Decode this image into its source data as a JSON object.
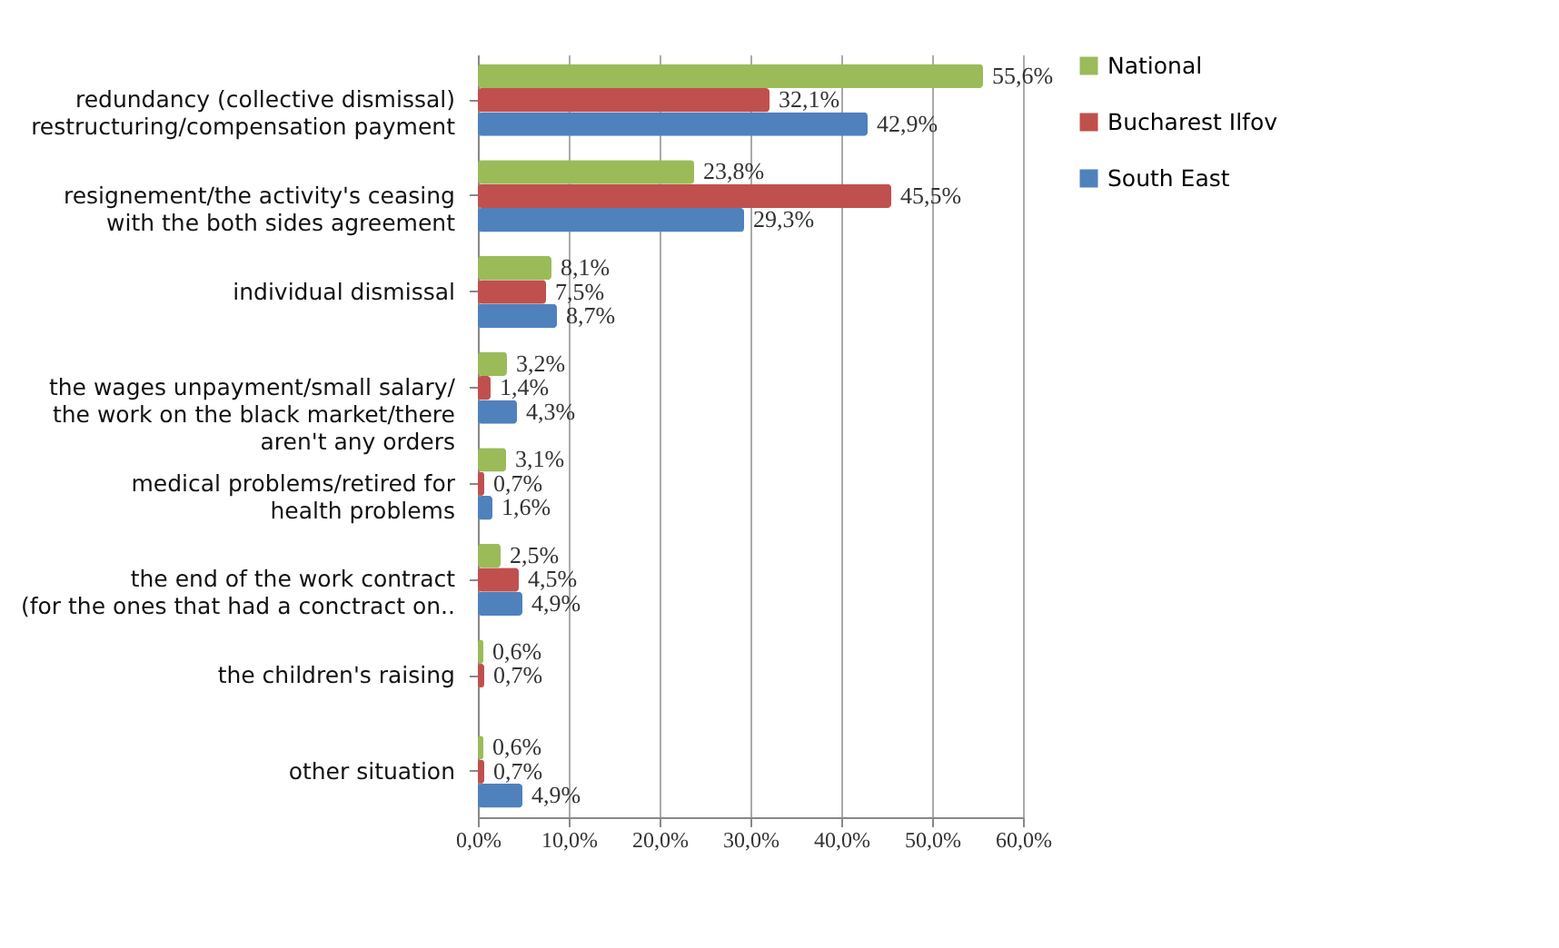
{
  "chart_data": {
    "type": "bar",
    "orientation": "horizontal",
    "categories": [
      "redundancy (collective dismissal)\nrestructuring/compensation payment",
      "resignement/the activity's ceasing\nwith the both sides agreement",
      "individual dismissal",
      "the wages unpayment/small salary/\nthe work on the black market/there\naren't any orders",
      "medical problems/retired for\nhealth problems",
      "the end of the work contract\n(for the ones that had a conctract on..",
      "the children's raising",
      "other situation"
    ],
    "series": [
      {
        "name": "National",
        "color": "#9bbb59",
        "values": [
          55.6,
          23.8,
          8.1,
          3.2,
          3.1,
          2.5,
          0.6,
          0.6
        ],
        "value_labels": [
          "55,6%",
          "23,8%",
          "8,1%",
          "3,2%",
          "3,1%",
          "2,5%",
          "0,6%",
          "0,6%"
        ]
      },
      {
        "name": "Bucharest Ilfov",
        "color": "#c0504d",
        "values": [
          32.1,
          45.5,
          7.5,
          1.4,
          0.7,
          4.5,
          0.7,
          0.7
        ],
        "value_labels": [
          "32,1%",
          "45,5%",
          "7,5%",
          "1,4%",
          "0,7%",
          "4,5%",
          "0,7%",
          "0,7%"
        ]
      },
      {
        "name": "South East",
        "color": "#4f81bd",
        "values": [
          42.9,
          29.3,
          8.7,
          4.3,
          1.6,
          4.9,
          null,
          4.9
        ],
        "value_labels": [
          "42,9%",
          "29,3%",
          "8,7%",
          "4,3%",
          "1,6%",
          "4,9%",
          null,
          "4,9%"
        ]
      }
    ],
    "xlim": [
      0,
      60
    ],
    "xticks": [
      {
        "value": 0,
        "label": "0,0%"
      },
      {
        "value": 10,
        "label": "10,0%"
      },
      {
        "value": 20,
        "label": "20,0%"
      },
      {
        "value": 30,
        "label": "30,0%"
      },
      {
        "value": 40,
        "label": "40,0%"
      },
      {
        "value": 50,
        "label": "50,0%"
      },
      {
        "value": 60,
        "label": "60,0%"
      }
    ],
    "grid": "x",
    "legend": "right"
  }
}
